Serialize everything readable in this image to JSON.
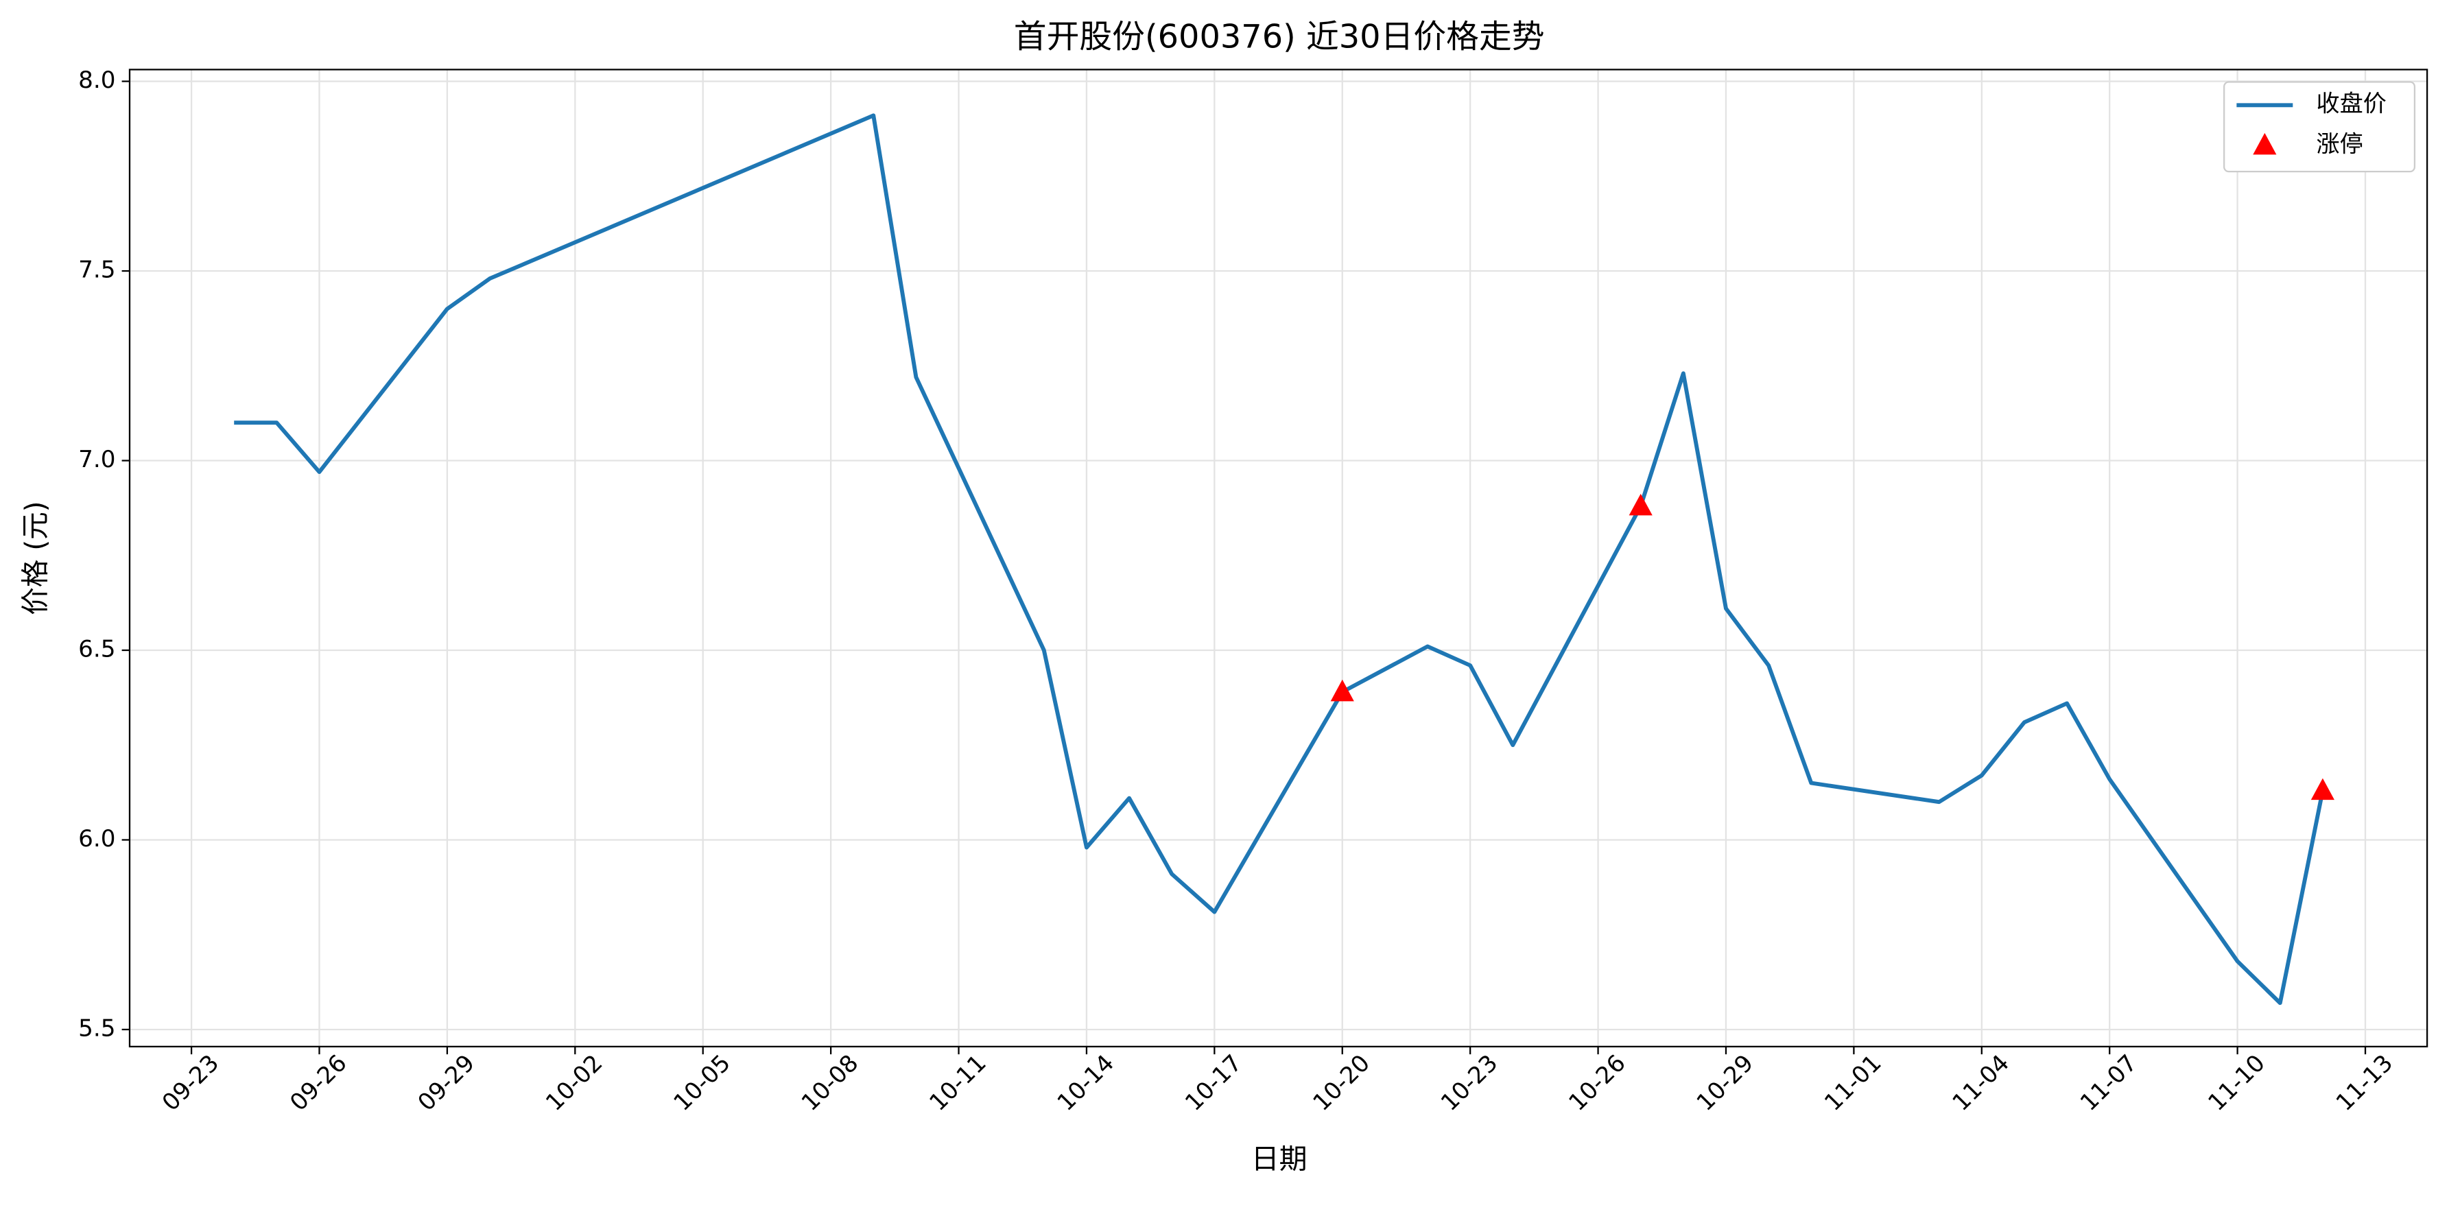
{
  "chart_data": {
    "type": "line",
    "title": "首开股份(600376) 近30日价格走势",
    "x_label": "日期",
    "y_label": "价格 (元)",
    "x": [
      "09-24",
      "09-25",
      "09-26",
      "09-29",
      "09-30",
      "10-09",
      "10-10",
      "10-13",
      "10-14",
      "10-15",
      "10-16",
      "10-17",
      "10-20",
      "10-22",
      "10-23",
      "10-24",
      "10-27",
      "10-28",
      "10-29",
      "10-30",
      "10-31",
      "11-03",
      "11-04",
      "11-05",
      "11-06",
      "11-07",
      "11-10",
      "11-11",
      "11-12"
    ],
    "series": [
      {
        "name": "收盘价",
        "type": "line",
        "color": "#1f77b4",
        "values": [
          7.1,
          7.1,
          6.97,
          7.4,
          7.48,
          7.91,
          7.22,
          6.5,
          5.98,
          6.11,
          5.91,
          5.81,
          6.39,
          6.51,
          6.46,
          6.25,
          6.88,
          7.23,
          6.61,
          6.46,
          6.15,
          6.1,
          6.17,
          6.31,
          6.36,
          6.16,
          5.68,
          5.57,
          6.13
        ]
      },
      {
        "name": "涨停",
        "type": "scatter",
        "color": "#ff0000",
        "x": [
          "10-20",
          "10-27",
          "11-12"
        ],
        "values": [
          6.39,
          6.88,
          6.13
        ]
      }
    ],
    "xticks": [
      "09-23",
      "09-26",
      "09-29",
      "10-02",
      "10-05",
      "10-08",
      "10-11",
      "10-14",
      "10-17",
      "10-20",
      "10-23",
      "10-26",
      "10-29",
      "11-01",
      "11-04",
      "11-07",
      "11-10",
      "11-13"
    ],
    "ylim": [
      5.455,
      8.031
    ],
    "yticks": [
      {
        "value": 5.5,
        "label": "5.5"
      },
      {
        "value": 6,
        "label": "6.0"
      },
      {
        "value": 6.5,
        "label": "6.5"
      },
      {
        "value": 7,
        "label": "7.0"
      },
      {
        "value": 7.5,
        "label": "7.5"
      },
      {
        "value": 8,
        "label": "8.0"
      }
    ],
    "grid": true,
    "legend": "upper right"
  }
}
